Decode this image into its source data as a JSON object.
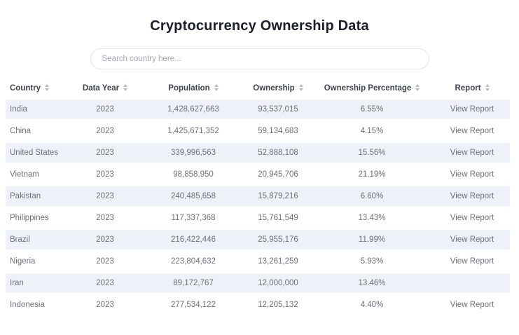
{
  "page": {
    "title": "Cryptocurrency Ownership Data"
  },
  "search": {
    "placeholder": "Search country here..."
  },
  "colors": {
    "title_text": "#1a1e2c",
    "header_text": "#3f444c",
    "cell_text": "#6c717a",
    "row_stripe": "#eef1f7",
    "search_border": "#e4e7ec",
    "sort_icon": "#b6bbc4"
  },
  "table": {
    "columns": [
      {
        "label": "Country",
        "sort_icon": "sort-icon"
      },
      {
        "label": "Data Year",
        "sort_icon": "sort-icon"
      },
      {
        "label": "Population",
        "sort_icon": "sort-icon"
      },
      {
        "label": "Ownership",
        "sort_icon": "sort-icon"
      },
      {
        "label": "Ownership Percentage",
        "sort_icon": "sort-icon"
      },
      {
        "label": "Report",
        "sort_icon": "sort-icon"
      }
    ],
    "rows": [
      {
        "country": "India",
        "data_year": "2023",
        "population": "1,428,627,663",
        "ownership": "93,537,015",
        "ownership_percentage": "6.55%",
        "report": "View Report"
      },
      {
        "country": "China",
        "data_year": "2023",
        "population": "1,425,671,352",
        "ownership": "59,134,683",
        "ownership_percentage": "4.15%",
        "report": "View Report"
      },
      {
        "country": "United States",
        "data_year": "2023",
        "population": "339,996,563",
        "ownership": "52,888,108",
        "ownership_percentage": "15.56%",
        "report": "View Report"
      },
      {
        "country": "Vietnam",
        "data_year": "2023",
        "population": "98,858,950",
        "ownership": "20,945,706",
        "ownership_percentage": "21.19%",
        "report": "View Report"
      },
      {
        "country": "Pakistan",
        "data_year": "2023",
        "population": "240,485,658",
        "ownership": "15,879,216",
        "ownership_percentage": "6.60%",
        "report": "View Report"
      },
      {
        "country": "Philippines",
        "data_year": "2023",
        "population": "117,337,368",
        "ownership": "15,761,549",
        "ownership_percentage": "13.43%",
        "report": "View Report"
      },
      {
        "country": "Brazil",
        "data_year": "2023",
        "population": "216,422,446",
        "ownership": "25,955,176",
        "ownership_percentage": "11.99%",
        "report": "View Report"
      },
      {
        "country": "Nigeria",
        "data_year": "2023",
        "population": "223,804,632",
        "ownership": "13,261,259",
        "ownership_percentage": "5.93%",
        "report": "View Report"
      },
      {
        "country": "Iran",
        "data_year": "2023",
        "population": "89,172,767",
        "ownership": "12,000,000",
        "ownership_percentage": "13.46%",
        "report": ""
      },
      {
        "country": "Indonesia",
        "data_year": "2023",
        "population": "277,534,122",
        "ownership": "12,205,132",
        "ownership_percentage": "4.40%",
        "report": "View Report"
      }
    ]
  }
}
